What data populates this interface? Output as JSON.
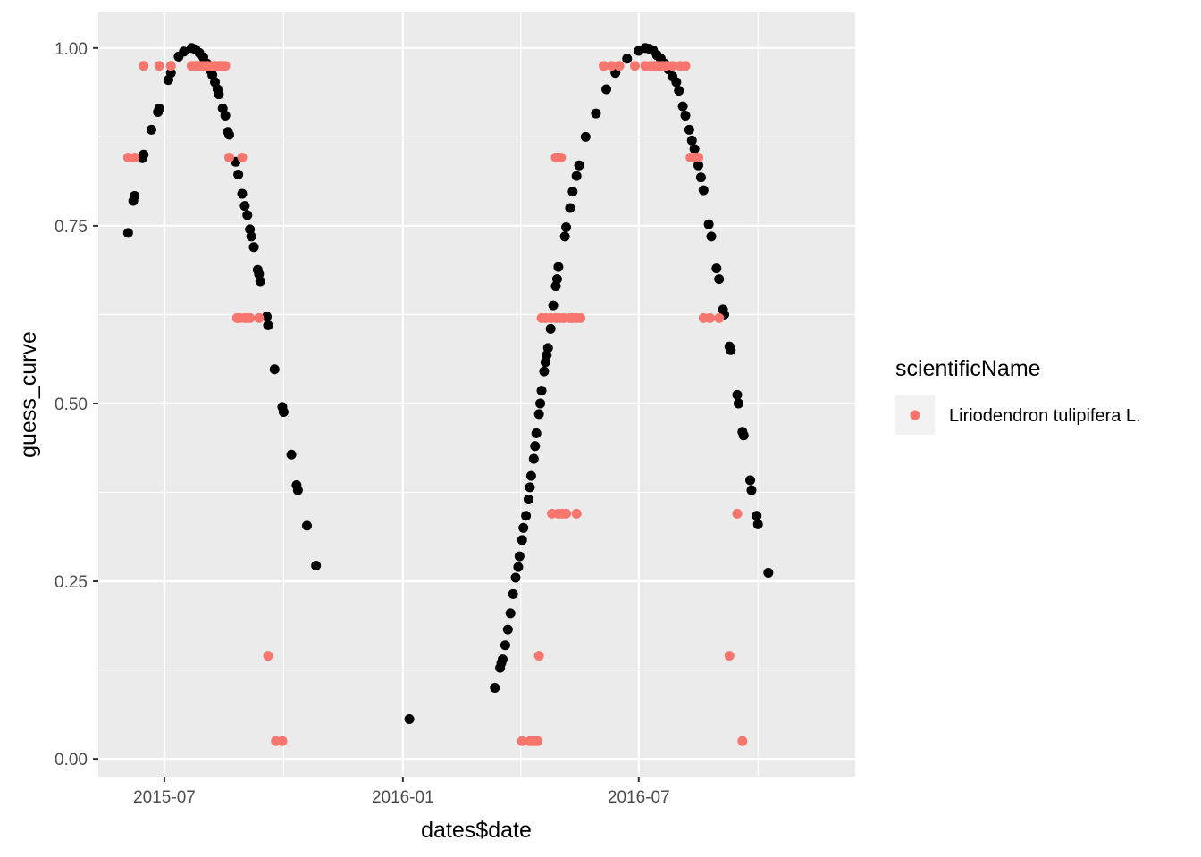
{
  "chart_data": {
    "type": "scatter",
    "xlabel": "dates$date",
    "ylabel": "guess_curve",
    "x_scale": "date",
    "xlim": [
      "2015-05-11",
      "2016-12-15"
    ],
    "ylim": [
      -0.025,
      1.05
    ],
    "x_ticks": [
      {
        "date": "2015-07-01",
        "label": "2015-07"
      },
      {
        "date": "2016-01-01",
        "label": "2016-01"
      },
      {
        "date": "2016-07-01",
        "label": "2016-07"
      }
    ],
    "y_ticks": [
      {
        "value": 0.0,
        "label": "0.00"
      },
      {
        "value": 0.25,
        "label": "0.25"
      },
      {
        "value": 0.5,
        "label": "0.50"
      },
      {
        "value": 0.75,
        "label": "0.75"
      },
      {
        "value": 1.0,
        "label": "1.00"
      }
    ],
    "grid": true,
    "panel_background": "#ebebeb",
    "grid_color": "#ffffff",
    "legend": {
      "position": "right",
      "title": "scientificName",
      "entries": [
        {
          "label": "Liriodendron tulipifera L.",
          "color": "#f8766d"
        }
      ]
    },
    "series": [
      {
        "name": "guess_curve",
        "color": "#000000",
        "points": [
          [
            "2015-06-03",
            0.74
          ],
          [
            "2015-06-07",
            0.785
          ],
          [
            "2015-06-08",
            0.792
          ],
          [
            "2015-06-14",
            0.845
          ],
          [
            "2015-06-15",
            0.85
          ],
          [
            "2015-06-21",
            0.885
          ],
          [
            "2015-06-26",
            0.91
          ],
          [
            "2015-06-27",
            0.915
          ],
          [
            "2015-07-04",
            0.955
          ],
          [
            "2015-07-06",
            0.965
          ],
          [
            "2015-07-12",
            0.988
          ],
          [
            "2015-07-16",
            0.995
          ],
          [
            "2015-07-22",
            1.0
          ],
          [
            "2015-07-25",
            0.998
          ],
          [
            "2015-07-28",
            0.993
          ],
          [
            "2015-07-31",
            0.987
          ],
          [
            "2015-08-03",
            0.978
          ],
          [
            "2015-08-05",
            0.97
          ],
          [
            "2015-08-07",
            0.962
          ],
          [
            "2015-08-09",
            0.952
          ],
          [
            "2015-08-11",
            0.942
          ],
          [
            "2015-08-12",
            0.935
          ],
          [
            "2015-08-15",
            0.915
          ],
          [
            "2015-08-17",
            0.905
          ],
          [
            "2015-08-19",
            0.882
          ],
          [
            "2015-08-20",
            0.878
          ],
          [
            "2015-08-25",
            0.84
          ],
          [
            "2015-08-27",
            0.822
          ],
          [
            "2015-08-30",
            0.795
          ],
          [
            "2015-09-01",
            0.778
          ],
          [
            "2015-09-03",
            0.765
          ],
          [
            "2015-09-05",
            0.745
          ],
          [
            "2015-09-06",
            0.735
          ],
          [
            "2015-09-08",
            0.72
          ],
          [
            "2015-09-11",
            0.688
          ],
          [
            "2015-09-12",
            0.682
          ],
          [
            "2015-09-13",
            0.672
          ],
          [
            "2015-09-18",
            0.622
          ],
          [
            "2015-09-19",
            0.61
          ],
          [
            "2015-09-24",
            0.548
          ],
          [
            "2015-09-30",
            0.495
          ],
          [
            "2015-10-01",
            0.488
          ],
          [
            "2015-10-07",
            0.428
          ],
          [
            "2015-10-11",
            0.385
          ],
          [
            "2015-10-12",
            0.378
          ],
          [
            "2015-10-19",
            0.328
          ],
          [
            "2015-10-26",
            0.272
          ],
          [
            "2016-01-06",
            0.056
          ],
          [
            "2016-03-12",
            0.1
          ],
          [
            "2016-03-16",
            0.128
          ],
          [
            "2016-03-17",
            0.135
          ],
          [
            "2016-03-18",
            0.14
          ],
          [
            "2016-03-20",
            0.16
          ],
          [
            "2016-03-22",
            0.182
          ],
          [
            "2016-03-24",
            0.205
          ],
          [
            "2016-03-26",
            0.232
          ],
          [
            "2016-03-28",
            0.255
          ],
          [
            "2016-03-30",
            0.27
          ],
          [
            "2016-03-31",
            0.285
          ],
          [
            "2016-04-02",
            0.308
          ],
          [
            "2016-04-03",
            0.325
          ],
          [
            "2016-04-05",
            0.342
          ],
          [
            "2016-04-07",
            0.365
          ],
          [
            "2016-04-08",
            0.382
          ],
          [
            "2016-04-09",
            0.398
          ],
          [
            "2016-04-11",
            0.422
          ],
          [
            "2016-04-12",
            0.44
          ],
          [
            "2016-04-13",
            0.458
          ],
          [
            "2016-04-15",
            0.485
          ],
          [
            "2016-04-16",
            0.5
          ],
          [
            "2016-04-17",
            0.518
          ],
          [
            "2016-04-19",
            0.545
          ],
          [
            "2016-04-20",
            0.558
          ],
          [
            "2016-04-21",
            0.568
          ],
          [
            "2016-04-22",
            0.578
          ],
          [
            "2016-04-24",
            0.605
          ],
          [
            "2016-04-26",
            0.638
          ],
          [
            "2016-04-28",
            0.665
          ],
          [
            "2016-04-29",
            0.675
          ],
          [
            "2016-04-30",
            0.692
          ],
          [
            "2016-05-05",
            0.735
          ],
          [
            "2016-05-06",
            0.748
          ],
          [
            "2016-05-09",
            0.775
          ],
          [
            "2016-05-11",
            0.798
          ],
          [
            "2016-05-14",
            0.82
          ],
          [
            "2016-05-16",
            0.835
          ],
          [
            "2016-05-21",
            0.875
          ],
          [
            "2016-05-29",
            0.908
          ],
          [
            "2016-06-06",
            0.942
          ],
          [
            "2016-06-13",
            0.965
          ],
          [
            "2016-06-22",
            0.985
          ],
          [
            "2016-07-01",
            0.996
          ],
          [
            "2016-07-06",
            1.0
          ],
          [
            "2016-07-09",
            0.999
          ],
          [
            "2016-07-12",
            0.997
          ],
          [
            "2016-07-15",
            0.99
          ],
          [
            "2016-07-18",
            0.985
          ],
          [
            "2016-07-21",
            0.978
          ],
          [
            "2016-07-24",
            0.97
          ],
          [
            "2016-07-27",
            0.96
          ],
          [
            "2016-07-30",
            0.952
          ],
          [
            "2016-08-01",
            0.94
          ],
          [
            "2016-08-04",
            0.918
          ],
          [
            "2016-08-06",
            0.905
          ],
          [
            "2016-08-09",
            0.885
          ],
          [
            "2016-08-11",
            0.87
          ],
          [
            "2016-08-13",
            0.858
          ],
          [
            "2016-08-16",
            0.835
          ],
          [
            "2016-08-18",
            0.818
          ],
          [
            "2016-08-20",
            0.8
          ],
          [
            "2016-08-24",
            0.752
          ],
          [
            "2016-08-26",
            0.735
          ],
          [
            "2016-08-30",
            0.69
          ],
          [
            "2016-09-01",
            0.675
          ],
          [
            "2016-09-04",
            0.632
          ],
          [
            "2016-09-05",
            0.625
          ],
          [
            "2016-09-09",
            0.58
          ],
          [
            "2016-09-10",
            0.575
          ],
          [
            "2016-09-15",
            0.512
          ],
          [
            "2016-09-16",
            0.5
          ],
          [
            "2016-09-19",
            0.46
          ],
          [
            "2016-09-20",
            0.455
          ],
          [
            "2016-09-25",
            0.392
          ],
          [
            "2016-09-26",
            0.378
          ],
          [
            "2016-09-30",
            0.342
          ],
          [
            "2016-10-01",
            0.33
          ],
          [
            "2016-10-09",
            0.262
          ]
        ]
      },
      {
        "name": "Liriodendron tulipifera L.",
        "color": "#f8766d",
        "points": [
          [
            "2015-06-03",
            0.846
          ],
          [
            "2015-06-08",
            0.846
          ],
          [
            "2015-06-15",
            0.975
          ],
          [
            "2015-06-27",
            0.975
          ],
          [
            "2015-07-06",
            0.975
          ],
          [
            "2015-07-22",
            0.975
          ],
          [
            "2015-07-25",
            0.975
          ],
          [
            "2015-07-28",
            0.975
          ],
          [
            "2015-07-31",
            0.975
          ],
          [
            "2015-08-03",
            0.975
          ],
          [
            "2015-08-06",
            0.975
          ],
          [
            "2015-08-09",
            0.975
          ],
          [
            "2015-08-12",
            0.975
          ],
          [
            "2015-08-14",
            0.975
          ],
          [
            "2015-08-17",
            0.975
          ],
          [
            "2015-08-20",
            0.846
          ],
          [
            "2015-08-30",
            0.846
          ],
          [
            "2015-08-26",
            0.62
          ],
          [
            "2015-08-28",
            0.62
          ],
          [
            "2015-09-01",
            0.62
          ],
          [
            "2015-09-03",
            0.62
          ],
          [
            "2015-09-05",
            0.62
          ],
          [
            "2015-09-12",
            0.62
          ],
          [
            "2015-09-19",
            0.145
          ],
          [
            "2015-09-25",
            0.025
          ],
          [
            "2015-09-30",
            0.025
          ],
          [
            "2016-04-02",
            0.025
          ],
          [
            "2016-04-08",
            0.025
          ],
          [
            "2016-04-10",
            0.025
          ],
          [
            "2016-04-12",
            0.025
          ],
          [
            "2016-04-14",
            0.025
          ],
          [
            "2016-04-15",
            0.145
          ],
          [
            "2016-04-17",
            0.62
          ],
          [
            "2016-04-20",
            0.62
          ],
          [
            "2016-04-24",
            0.62
          ],
          [
            "2016-04-28",
            0.62
          ],
          [
            "2016-05-01",
            0.62
          ],
          [
            "2016-05-04",
            0.62
          ],
          [
            "2016-05-09",
            0.62
          ],
          [
            "2016-05-11",
            0.62
          ],
          [
            "2016-05-14",
            0.62
          ],
          [
            "2016-05-17",
            0.62
          ],
          [
            "2016-04-28",
            0.846
          ],
          [
            "2016-04-30",
            0.846
          ],
          [
            "2016-05-02",
            0.846
          ],
          [
            "2016-04-25",
            0.345
          ],
          [
            "2016-04-30",
            0.345
          ],
          [
            "2016-05-03",
            0.345
          ],
          [
            "2016-05-06",
            0.345
          ],
          [
            "2016-05-14",
            0.345
          ],
          [
            "2016-06-04",
            0.975
          ],
          [
            "2016-06-10",
            0.975
          ],
          [
            "2016-06-16",
            0.975
          ],
          [
            "2016-06-28",
            0.975
          ],
          [
            "2016-07-06",
            0.975
          ],
          [
            "2016-07-10",
            0.975
          ],
          [
            "2016-07-13",
            0.975
          ],
          [
            "2016-07-16",
            0.975
          ],
          [
            "2016-07-19",
            0.975
          ],
          [
            "2016-07-22",
            0.975
          ],
          [
            "2016-07-27",
            0.975
          ],
          [
            "2016-08-02",
            0.975
          ],
          [
            "2016-08-06",
            0.975
          ],
          [
            "2016-08-10",
            0.846
          ],
          [
            "2016-08-12",
            0.846
          ],
          [
            "2016-08-14",
            0.846
          ],
          [
            "2016-08-16",
            0.846
          ],
          [
            "2016-08-20",
            0.62
          ],
          [
            "2016-08-25",
            0.62
          ],
          [
            "2016-09-01",
            0.62
          ],
          [
            "2016-09-09",
            0.145
          ],
          [
            "2016-09-15",
            0.345
          ],
          [
            "2016-09-19",
            0.025
          ]
        ]
      }
    ]
  }
}
